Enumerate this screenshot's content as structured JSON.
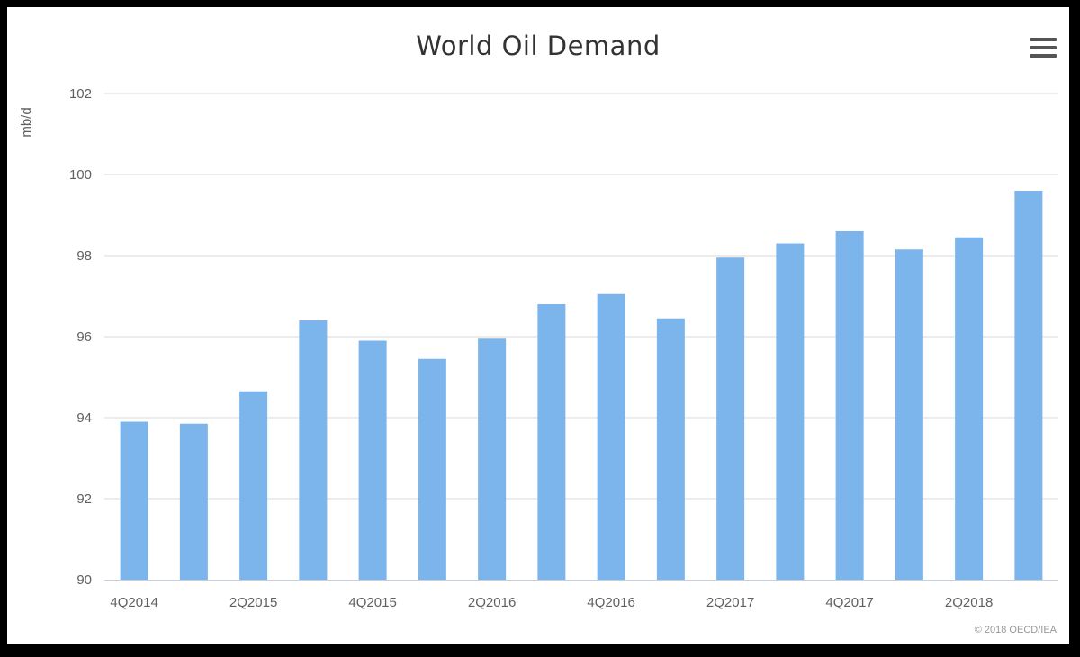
{
  "chart_data": {
    "type": "bar",
    "title": "World Oil Demand",
    "ylabel": "mb/d",
    "xlabel": "",
    "ylim": [
      90,
      102
    ],
    "yticks": [
      90,
      92,
      94,
      96,
      98,
      100,
      102
    ],
    "categories": [
      "4Q2014",
      "1Q2015",
      "2Q2015",
      "3Q2015",
      "4Q2015",
      "1Q2016",
      "2Q2016",
      "3Q2016",
      "4Q2016",
      "1Q2017",
      "2Q2017",
      "3Q2017",
      "4Q2017",
      "1Q2018",
      "2Q2018",
      "3Q2018"
    ],
    "xtick_labels": [
      "4Q2014",
      "",
      "2Q2015",
      "",
      "4Q2015",
      "",
      "2Q2016",
      "",
      "4Q2016",
      "",
      "2Q2017",
      "",
      "4Q2017",
      "",
      "2Q2018",
      ""
    ],
    "values": [
      93.9,
      93.85,
      94.65,
      96.4,
      95.9,
      95.45,
      95.95,
      96.8,
      97.05,
      96.45,
      97.95,
      98.3,
      98.6,
      98.15,
      98.45,
      99.6
    ],
    "grid": true,
    "legend": "none",
    "bar_color": "#7cb5ec",
    "grid_color": "#d8d8d8",
    "axis_color": "#c0d0e0"
  },
  "credits": "© 2018 OECD/IEA"
}
